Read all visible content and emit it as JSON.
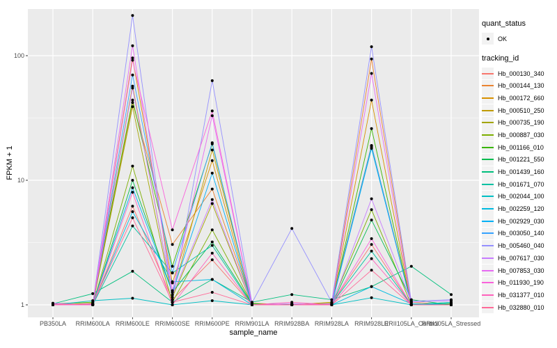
{
  "chart": {
    "y_axis": {
      "title": "FPKM + 1",
      "tick_labels": [
        "1",
        "10",
        "100"
      ],
      "tick_values": [
        1,
        10,
        100
      ]
    },
    "x_axis": {
      "title": "sample_name"
    },
    "legend": {
      "quant_status": {
        "title": "quant_status",
        "items": [
          {
            "label": "OK",
            "marker": "black-point"
          }
        ]
      },
      "tracking_id": {
        "title": "tracking_id"
      }
    },
    "colors": {
      "panel_background": "#EBEBEB",
      "gridline": "#FFFFFF",
      "tick_text": "#4D4D4D",
      "tick_mark": "#333333",
      "point": "#000000"
    }
  },
  "chart_data": {
    "type": "line",
    "title": "",
    "xlabel": "sample_name",
    "ylabel": "FPKM + 1",
    "yscale": "log10",
    "ylim": [
      0.85,
      240
    ],
    "y_ticks": [
      1,
      10,
      100
    ],
    "grid": "major-and-minor",
    "legend_position": "right",
    "point_marker": "small black point on every value (quant_status OK)",
    "categories": [
      "PB350LA",
      "RRIM600LA",
      "RRIM600LE",
      "RRIM600SE",
      "RRIM600PE",
      "RRIM901LA",
      "RRIM928BA",
      "RRIM928LA",
      "RRIM928LE",
      "RRII105LA_Control",
      "RRII105LA_Stressed"
    ],
    "series": [
      {
        "name": "Hb_000130_340",
        "color": "#F8766D",
        "values": [
          1.02,
          1.0,
          6.2,
          1.1,
          2.3,
          1.0,
          1.0,
          1.02,
          3.05,
          1.0,
          1.0
        ]
      },
      {
        "name": "Hb_000144_130",
        "color": "#EA8331",
        "values": [
          1.0,
          1.02,
          42,
          3.05,
          8.5,
          1.02,
          1.0,
          1.0,
          94,
          1.05,
          1.0
        ]
      },
      {
        "name": "Hb_000172_660",
        "color": "#D89000",
        "values": [
          1.03,
          1.0,
          96,
          1.5,
          14.4,
          1.0,
          1.02,
          1.0,
          44,
          1.0,
          1.02
        ]
      },
      {
        "name": "Hb_000510_250",
        "color": "#C09B00",
        "values": [
          1.0,
          1.03,
          57,
          1.2,
          17.5,
          1.03,
          1.0,
          1.05,
          19,
          1.02,
          1.0
        ]
      },
      {
        "name": "Hb_000735_190",
        "color": "#A3A500",
        "values": [
          1.02,
          1.0,
          39,
          1.15,
          6.5,
          1.0,
          1.0,
          1.0,
          18.5,
          1.0,
          1.0
        ]
      },
      {
        "name": "Hb_000887_030",
        "color": "#7CAE00",
        "values": [
          1.0,
          1.0,
          13,
          1.05,
          4.0,
          1.02,
          1.0,
          1.03,
          5.8,
          1.0,
          1.02
        ]
      },
      {
        "name": "Hb_001166_010",
        "color": "#39B600",
        "values": [
          1.02,
          1.05,
          44,
          2.04,
          19.6,
          1.0,
          1.0,
          1.0,
          26,
          1.0,
          1.0
        ]
      },
      {
        "name": "Hb_001221_550",
        "color": "#00BB4E",
        "values": [
          1.0,
          1.0,
          10,
          1.26,
          3.2,
          1.02,
          1.0,
          1.0,
          4.8,
          1.1,
          1.0
        ]
      },
      {
        "name": "Hb_001439_160",
        "color": "#00BF7D",
        "values": [
          1.02,
          1.23,
          1.86,
          1.05,
          1.6,
          1.05,
          1.21,
          1.1,
          1.4,
          2.04,
          1.21
        ]
      },
      {
        "name": "Hb_001671_070",
        "color": "#00C1A3",
        "values": [
          1.0,
          1.0,
          4.3,
          1.8,
          3.0,
          1.0,
          1.0,
          1.02,
          2.7,
          1.0,
          1.05
        ]
      },
      {
        "name": "Hb_002044_100",
        "color": "#00BFC4",
        "values": [
          1.0,
          1.08,
          1.13,
          1.0,
          1.08,
          1.0,
          1.0,
          1.0,
          1.14,
          1.0,
          1.03
        ]
      },
      {
        "name": "Hb_002259_120",
        "color": "#00BAE0",
        "values": [
          1.02,
          1.0,
          5.6,
          1.53,
          1.6,
          1.0,
          1.02,
          1.0,
          1.4,
          1.02,
          1.0
        ]
      },
      {
        "name": "Hb_002929_030",
        "color": "#00B0F6",
        "values": [
          1.0,
          1.02,
          8.7,
          1.26,
          11.4,
          1.0,
          1.0,
          1.0,
          18,
          1.0,
          1.0
        ]
      },
      {
        "name": "Hb_003050_140",
        "color": "#35A2FF",
        "values": [
          1.02,
          1.0,
          70,
          1.81,
          20,
          1.0,
          1.0,
          1.02,
          19,
          1.0,
          1.0
        ]
      },
      {
        "name": "Hb_005460_040",
        "color": "#9590FF",
        "values": [
          1.03,
          1.0,
          210,
          1.1,
          63,
          1.04,
          4.1,
          1.05,
          118,
          1.07,
          1.1
        ]
      },
      {
        "name": "Hb_007617_030",
        "color": "#C77CFF",
        "values": [
          1.0,
          1.02,
          55,
          1.2,
          7.0,
          1.0,
          1.0,
          1.0,
          7.1,
          1.05,
          1.08
        ]
      },
      {
        "name": "Hb_007853_030",
        "color": "#E76BF3",
        "values": [
          1.02,
          1.0,
          120,
          1.3,
          33,
          1.0,
          1.02,
          1.0,
          72,
          1.0,
          1.0
        ]
      },
      {
        "name": "Hb_011930_190",
        "color": "#FA62DB",
        "values": [
          1.0,
          1.0,
          92,
          4.0,
          36,
          1.0,
          1.0,
          1.02,
          3.4,
          1.0,
          1.0
        ]
      },
      {
        "name": "Hb_031377_010",
        "color": "#FF62BC",
        "values": [
          1.02,
          1.0,
          8.0,
          1.0,
          2.6,
          1.0,
          1.05,
          1.0,
          2.35,
          1.0,
          1.0
        ]
      },
      {
        "name": "Hb_032880_010",
        "color": "#FF6A98",
        "values": [
          1.0,
          1.02,
          5.0,
          1.05,
          1.26,
          1.0,
          1.0,
          1.0,
          1.9,
          1.0,
          1.0
        ]
      }
    ]
  }
}
